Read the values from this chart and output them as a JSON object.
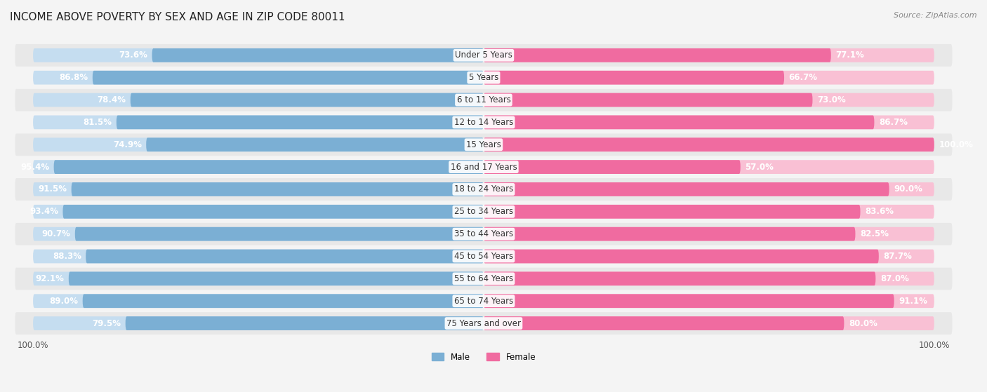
{
  "title": "INCOME ABOVE POVERTY BY SEX AND AGE IN ZIP CODE 80011",
  "source": "Source: ZipAtlas.com",
  "categories": [
    "Under 5 Years",
    "5 Years",
    "6 to 11 Years",
    "12 to 14 Years",
    "15 Years",
    "16 and 17 Years",
    "18 to 24 Years",
    "25 to 34 Years",
    "35 to 44 Years",
    "45 to 54 Years",
    "55 to 64 Years",
    "65 to 74 Years",
    "75 Years and over"
  ],
  "male_values": [
    73.6,
    86.8,
    78.4,
    81.5,
    74.9,
    95.4,
    91.5,
    93.4,
    90.7,
    88.3,
    92.1,
    89.0,
    79.5
  ],
  "female_values": [
    77.1,
    66.7,
    73.0,
    86.7,
    100.0,
    57.0,
    90.0,
    83.6,
    82.5,
    87.7,
    87.0,
    91.1,
    80.0
  ],
  "male_color": "#7bafd4",
  "male_color_light": "#c5ddf0",
  "female_color": "#f06ba0",
  "female_color_light": "#f9c0d4",
  "male_label": "Male",
  "female_label": "Female",
  "bg_color": "#f4f4f4",
  "row_color_dark": "#e8e8e8",
  "row_color_light": "#f4f4f4",
  "bar_height": 0.62,
  "title_fontsize": 11,
  "label_fontsize": 8.5,
  "value_fontsize": 8.5,
  "tick_fontsize": 8.5,
  "source_fontsize": 8
}
